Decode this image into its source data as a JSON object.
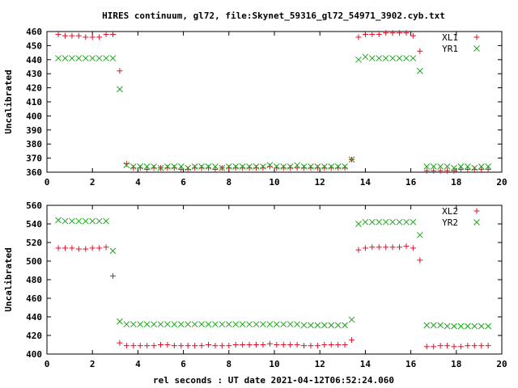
{
  "title": "HIRES continuum, gl72, file:Skynet_59316_gl72_54971_3902.cyb.txt",
  "xlabel": "rel seconds : UT date 2021-04-12T06:52:24.060",
  "colors": {
    "series_a": "#e0102a",
    "series_b": "#18a818",
    "axes": "#000000"
  },
  "chart_data": [
    {
      "type": "scatter",
      "ylabel": "Uncalibrated",
      "xlim": [
        0,
        20
      ],
      "ylim": [
        360,
        460
      ],
      "xticks": [
        0,
        2,
        4,
        6,
        8,
        10,
        12,
        14,
        16,
        18,
        20
      ],
      "yticks": [
        360,
        370,
        380,
        390,
        400,
        410,
        420,
        430,
        440,
        450,
        460
      ],
      "grid": false,
      "legend_position": "top-right",
      "series": [
        {
          "name": "XL1",
          "marker": "plus",
          "x": [
            0.5,
            0.8,
            1.1,
            1.4,
            1.7,
            2.0,
            2.3,
            2.6,
            2.9,
            3.2,
            3.5,
            3.8,
            4.1,
            4.4,
            4.7,
            5.0,
            5.3,
            5.6,
            5.9,
            6.2,
            6.5,
            6.8,
            7.1,
            7.4,
            7.7,
            8.0,
            8.3,
            8.6,
            8.9,
            9.2,
            9.5,
            9.8,
            10.1,
            10.4,
            10.7,
            11.0,
            11.3,
            11.6,
            11.9,
            12.2,
            12.5,
            12.8,
            13.1,
            13.4,
            13.7,
            14.0,
            14.3,
            14.6,
            14.9,
            15.2,
            15.5,
            15.8,
            16.1,
            16.4,
            16.7,
            17.0,
            17.3,
            17.6,
            17.9,
            18.2,
            18.5,
            18.8,
            19.1,
            19.4
          ],
          "y": [
            458,
            457,
            457,
            457,
            456,
            456,
            456,
            458,
            458,
            432,
            366,
            363,
            363,
            362,
            363,
            363,
            363,
            363,
            362,
            362,
            363,
            363,
            363,
            362,
            363,
            363,
            363,
            363,
            363,
            363,
            363,
            364,
            363,
            363,
            363,
            363,
            363,
            363,
            363,
            363,
            363,
            363,
            363,
            369,
            456,
            458,
            458,
            458,
            459,
            459,
            459,
            459,
            457,
            446,
            361,
            361,
            361,
            361,
            361,
            362,
            362,
            362,
            362,
            362
          ]
        },
        {
          "name": "YR1",
          "marker": "cross",
          "x": [
            0.5,
            0.8,
            1.1,
            1.4,
            1.7,
            2.0,
            2.3,
            2.6,
            2.9,
            3.2,
            3.5,
            3.8,
            4.1,
            4.4,
            4.7,
            5.0,
            5.3,
            5.6,
            5.9,
            6.2,
            6.5,
            6.8,
            7.1,
            7.4,
            7.7,
            8.0,
            8.3,
            8.6,
            8.9,
            9.2,
            9.5,
            9.8,
            10.1,
            10.4,
            10.7,
            11.0,
            11.3,
            11.6,
            11.9,
            12.2,
            12.5,
            12.8,
            13.1,
            13.4,
            13.7,
            14.0,
            14.3,
            14.6,
            14.9,
            15.2,
            15.5,
            15.8,
            16.1,
            16.4,
            16.7,
            17.0,
            17.3,
            17.6,
            17.9,
            18.2,
            18.5,
            18.8,
            19.1,
            19.4
          ],
          "y": [
            441,
            441,
            441,
            441,
            441,
            441,
            441,
            441,
            441,
            419,
            365,
            364,
            364,
            364,
            364,
            363,
            364,
            364,
            364,
            363,
            364,
            364,
            364,
            364,
            363,
            364,
            364,
            364,
            364,
            364,
            364,
            365,
            364,
            364,
            364,
            365,
            364,
            364,
            364,
            364,
            364,
            364,
            364,
            369,
            440,
            442,
            441,
            441,
            441,
            441,
            441,
            441,
            441,
            432,
            364,
            364,
            364,
            364,
            363,
            364,
            364,
            363,
            364,
            364
          ]
        }
      ]
    },
    {
      "type": "scatter",
      "ylabel": "Uncalibrated",
      "xlim": [
        0,
        20
      ],
      "ylim": [
        400,
        560
      ],
      "xticks": [
        0,
        2,
        4,
        6,
        8,
        10,
        12,
        14,
        16,
        18,
        20
      ],
      "yticks": [
        400,
        420,
        440,
        460,
        480,
        500,
        520,
        540,
        560
      ],
      "grid": false,
      "legend_position": "top-right",
      "series": [
        {
          "name": "XL2",
          "marker": "plus",
          "x": [
            0.5,
            0.8,
            1.1,
            1.4,
            1.7,
            2.0,
            2.3,
            2.6,
            2.9,
            3.2,
            3.5,
            3.8,
            4.1,
            4.4,
            4.7,
            5.0,
            5.3,
            5.6,
            5.9,
            6.2,
            6.5,
            6.8,
            7.1,
            7.4,
            7.7,
            8.0,
            8.3,
            8.6,
            8.9,
            9.2,
            9.5,
            9.8,
            10.1,
            10.4,
            10.7,
            11.0,
            11.3,
            11.6,
            11.9,
            12.2,
            12.5,
            12.8,
            13.1,
            13.4,
            13.7,
            14.0,
            14.3,
            14.6,
            14.9,
            15.2,
            15.5,
            15.8,
            16.1,
            16.4,
            16.7,
            17.0,
            17.3,
            17.6,
            17.9,
            18.2,
            18.5,
            18.8,
            19.1,
            19.4
          ],
          "y": [
            514,
            514,
            514,
            513,
            513,
            514,
            514,
            515,
            484,
            412,
            409,
            409,
            409,
            409,
            409,
            410,
            410,
            409,
            409,
            409,
            409,
            409,
            410,
            409,
            409,
            409,
            410,
            410,
            410,
            410,
            410,
            411,
            410,
            410,
            410,
            410,
            409,
            409,
            409,
            410,
            410,
            410,
            410,
            415,
            512,
            514,
            515,
            515,
            515,
            515,
            515,
            516,
            514,
            501,
            408,
            408,
            409,
            409,
            408,
            408,
            409,
            409,
            409,
            409
          ]
        },
        {
          "name": "YR2",
          "marker": "cross",
          "x": [
            0.5,
            0.8,
            1.1,
            1.4,
            1.7,
            2.0,
            2.3,
            2.6,
            2.9,
            3.2,
            3.5,
            3.8,
            4.1,
            4.4,
            4.7,
            5.0,
            5.3,
            5.6,
            5.9,
            6.2,
            6.5,
            6.8,
            7.1,
            7.4,
            7.7,
            8.0,
            8.3,
            8.6,
            8.9,
            9.2,
            9.5,
            9.8,
            10.1,
            10.4,
            10.7,
            11.0,
            11.3,
            11.6,
            11.9,
            12.2,
            12.5,
            12.8,
            13.1,
            13.4,
            13.7,
            14.0,
            14.3,
            14.6,
            14.9,
            15.2,
            15.5,
            15.8,
            16.1,
            16.4,
            16.7,
            17.0,
            17.3,
            17.6,
            17.9,
            18.2,
            18.5,
            18.8,
            19.1,
            19.4
          ],
          "y": [
            544,
            543,
            543,
            543,
            543,
            543,
            543,
            543,
            511,
            435,
            432,
            432,
            432,
            432,
            432,
            432,
            432,
            432,
            432,
            432,
            432,
            432,
            432,
            432,
            432,
            432,
            432,
            432,
            432,
            432,
            432,
            432,
            432,
            432,
            432,
            432,
            431,
            431,
            431,
            431,
            431,
            431,
            431,
            437,
            540,
            542,
            542,
            542,
            542,
            542,
            542,
            542,
            542,
            528,
            431,
            431,
            431,
            430,
            430,
            430,
            430,
            430,
            430,
            430
          ]
        }
      ]
    }
  ]
}
